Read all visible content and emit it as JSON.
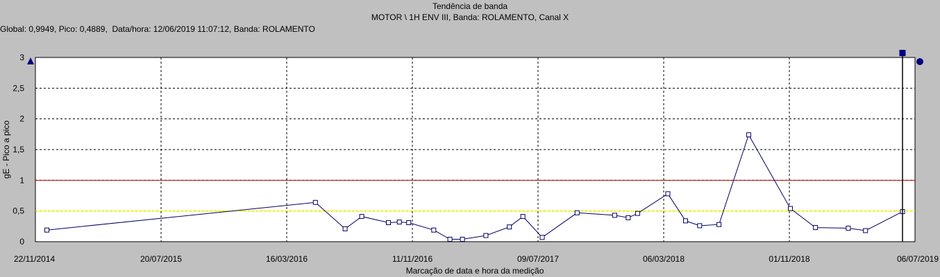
{
  "header": {
    "title": "Tendência de banda",
    "subtitle": "MOTOR \\ 1H ENV III, Banda: ROLAMENTO, Canal X",
    "info": "Global: 0,9949, Pico: 0,4889,  Data/hora: 12/06/2019 11:07:12, Banda: ROLAMENTO"
  },
  "colors": {
    "background": "#c0c0c0",
    "plot_background": "#ffffff",
    "series_line": "#000060",
    "alarm_high": "#c00000",
    "alarm_low": "#ffff00",
    "marker": "#000080"
  },
  "chart_data": {
    "type": "line",
    "title": "Tendência de banda",
    "xlabel": "Marcação de data e hora da medição",
    "ylabel": "gE - Pico a pico",
    "xlim": [
      "2014-11-22",
      "2019-07-06"
    ],
    "ylim": [
      0,
      3
    ],
    "grid": true,
    "x_ticks": [
      "22/11/2014",
      "20/07/2015",
      "16/03/2016",
      "11/11/2016",
      "09/07/2017",
      "06/03/2018",
      "01/11/2018",
      "06/07/2019"
    ],
    "y_ticks": [
      "0",
      "0,5",
      "1",
      "1,5",
      "2",
      "2,5",
      "3"
    ],
    "alarm_lines": [
      {
        "level": 1.0,
        "color": "#c00000"
      },
      {
        "level": 0.5,
        "color": "#ffff00"
      }
    ],
    "cursor_date": "2019-06-12",
    "series": [
      {
        "x": [
          "2014-12-14",
          "2016-05-12",
          "2016-07-08",
          "2016-08-09",
          "2016-09-29",
          "2016-10-20",
          "2016-11-07",
          "2016-12-25",
          "2017-01-25",
          "2017-02-18",
          "2017-04-04",
          "2017-05-19",
          "2017-06-14",
          "2017-07-21",
          "2017-09-26",
          "2017-12-07",
          "2018-01-02",
          "2018-01-20",
          "2018-03-19",
          "2018-04-22",
          "2018-05-19",
          "2018-06-25",
          "2018-08-21",
          "2018-11-09",
          "2018-12-27",
          "2019-02-28",
          "2019-04-02",
          "2019-06-12"
        ],
        "y": [
          0.19,
          0.64,
          0.21,
          0.41,
          0.31,
          0.32,
          0.31,
          0.19,
          0.04,
          0.04,
          0.1,
          0.24,
          0.41,
          0.07,
          0.47,
          0.43,
          0.39,
          0.46,
          0.78,
          0.34,
          0.26,
          0.28,
          1.74,
          0.54,
          0.23,
          0.22,
          0.18,
          0.49
        ]
      }
    ]
  }
}
